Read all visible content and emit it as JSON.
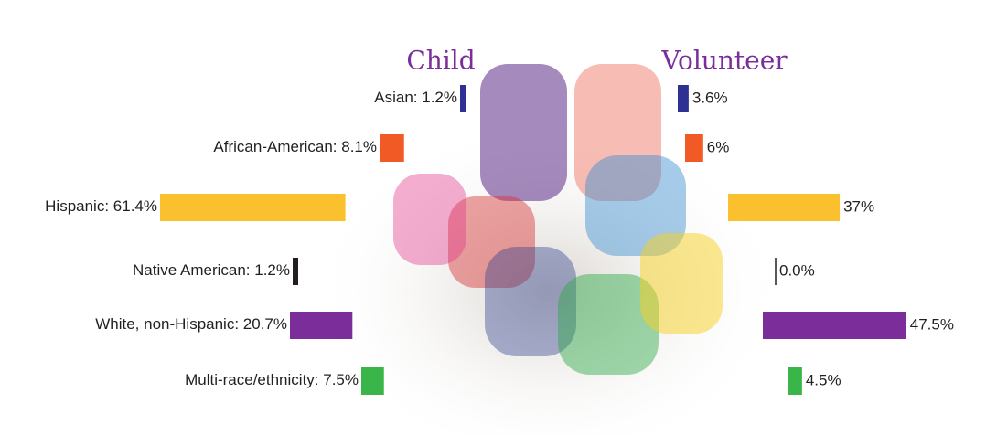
{
  "chart_data": {
    "type": "bar",
    "categories": [
      "Asian",
      "African-American",
      "Hispanic",
      "Native American",
      "White, non-Hispanic",
      "Multi-race/ethnicity"
    ],
    "colors": [
      "#2e3192",
      "#f15a24",
      "#fbc02d",
      "#231f20",
      "#7b2d9a",
      "#39b54a"
    ],
    "series": [
      {
        "name": "Child",
        "values": [
          1.2,
          8.1,
          61.4,
          1.2,
          20.7,
          7.5
        ],
        "value_labels": [
          "1.2%",
          "8.1%",
          "61.4%",
          "1.2%",
          "20.7%",
          "7.5%"
        ]
      },
      {
        "name": "Volunteer",
        "values": [
          3.6,
          6,
          37,
          0,
          47.5,
          4.5
        ],
        "value_labels": [
          "3.6%",
          "6%",
          "37%",
          "0.0%",
          "47.5%",
          "4.5%"
        ]
      }
    ]
  }
}
